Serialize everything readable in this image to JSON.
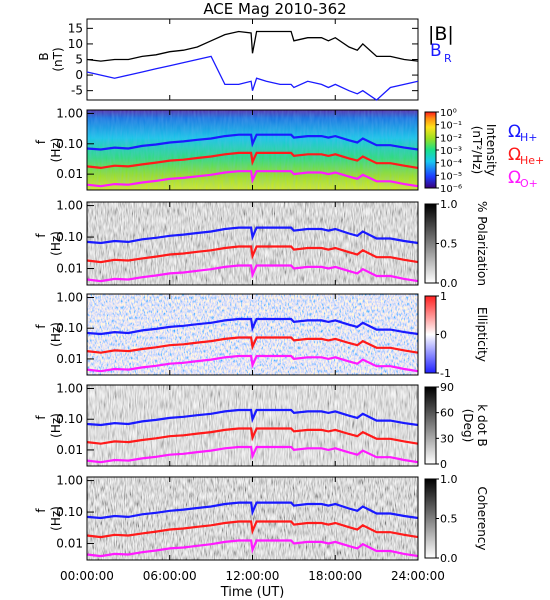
{
  "figure": {
    "title": "ACE Mag 2010-362",
    "x_axis_label": "Time (UT)",
    "x_ticks": [
      "00:00:00",
      "06:00:00",
      "12:00:00",
      "18:00:00",
      "24:00:00"
    ]
  },
  "panels": {
    "field": {
      "ylabel_line1": "B",
      "ylabel_line2": "(nT)",
      "yticks": [
        "15",
        "10",
        "5",
        "0",
        "-5"
      ],
      "legend_total": "|B|",
      "legend_radial": "B",
      "legend_radial_sub": "R"
    },
    "intensity": {
      "ylabel_line1": "f",
      "ylabel_line2": "(Hz)",
      "colorbar_label": "Intensity",
      "colorbar_unit": "(nT²/Hz)",
      "colorbar_ticks": [
        "10⁰",
        "10⁻¹",
        "10⁻²",
        "10⁻³",
        "10⁻⁴",
        "10⁻⁵",
        "10⁻⁶"
      ]
    },
    "polarization": {
      "ylabel_line1": "f",
      "ylabel_line2": "(Hz)",
      "colorbar_label": "% Polarization",
      "colorbar_ticks": [
        "1.0",
        "0.5",
        "0.0"
      ]
    },
    "ellipticity": {
      "ylabel_line1": "f",
      "ylabel_line2": "(Hz)",
      "colorbar_label": "Ellipticity",
      "colorbar_ticks": [
        "1",
        "0",
        "-1"
      ]
    },
    "kdotb": {
      "ylabel_line1": "f",
      "ylabel_line2": "(Hz)",
      "colorbar_label": "k dot B",
      "colorbar_unit": "(Deg)",
      "colorbar_ticks": [
        "90",
        "60",
        "30",
        "0"
      ]
    },
    "coherency": {
      "ylabel_line1": "f",
      "ylabel_line2": "(Hz)",
      "colorbar_label": "Coherency",
      "colorbar_ticks": [
        "1.0",
        "0.5",
        "0.0"
      ]
    },
    "freq_ticks": [
      "1.00",
      "0.10",
      "0.01"
    ]
  },
  "gyro_legend": [
    {
      "symbol": "Ω",
      "sub": "H+",
      "color": "#1a1aff"
    },
    {
      "symbol": "Ω",
      "sub": "He+",
      "color": "#ff1a1a"
    },
    {
      "symbol": "Ω",
      "sub": "O+",
      "color": "#ff1aff"
    }
  ],
  "colors": {
    "total_field": "#000000",
    "radial_field": "#1a1aff",
    "proton_gyro": "#1a1aff",
    "helium_gyro": "#ff1a1a",
    "oxygen_gyro": "#ff1aff"
  },
  "chart_data": {
    "type": "line",
    "x_unit": "hours UT",
    "x_range": [
      0,
      24
    ],
    "field_panel": {
      "ylim": [
        -8,
        18
      ],
      "series": [
        {
          "name": "|B|",
          "x": [
            0,
            1,
            2,
            3,
            4,
            5,
            6,
            7,
            8,
            9,
            10,
            11,
            11.9,
            12,
            12.3,
            13,
            14,
            14.8,
            15,
            16,
            17,
            17.5,
            18,
            19,
            19.6,
            20,
            21,
            22,
            23,
            24
          ],
          "values": [
            5,
            4.5,
            5,
            5,
            6,
            6.5,
            7.5,
            8,
            9,
            11,
            13,
            14,
            13.5,
            7,
            14,
            14,
            14,
            14,
            11,
            12,
            12,
            11,
            12,
            9,
            8,
            10,
            6,
            6,
            5,
            4.5
          ]
        },
        {
          "name": "BR",
          "x": [
            0,
            1,
            2,
            3,
            4,
            5,
            6,
            7,
            8,
            9,
            10,
            11,
            11.9,
            12,
            12.3,
            13,
            14,
            14.8,
            15,
            16,
            17,
            17.5,
            18,
            19,
            19.6,
            20,
            21,
            22,
            23,
            24
          ],
          "values": [
            1,
            0,
            -1,
            0,
            1,
            2,
            3,
            4,
            5,
            6,
            -3,
            -3,
            -2,
            -5,
            -1,
            -2,
            -3,
            -3,
            -4,
            -2,
            -3,
            -4,
            -3,
            -5,
            -6,
            -5,
            -8,
            -4,
            -3,
            -2
          ]
        }
      ]
    },
    "gyrofrequency_hz": {
      "x": [
        0,
        1,
        2,
        3,
        4,
        5,
        6,
        7,
        8,
        9,
        10,
        11,
        11.9,
        12,
        12.3,
        13,
        14,
        14.8,
        15,
        16,
        17,
        17.5,
        18,
        19,
        19.6,
        20,
        21,
        22,
        23,
        24
      ],
      "H+": [
        0.07,
        0.065,
        0.075,
        0.07,
        0.085,
        0.095,
        0.11,
        0.12,
        0.135,
        0.15,
        0.18,
        0.2,
        0.2,
        0.1,
        0.2,
        0.2,
        0.2,
        0.2,
        0.16,
        0.18,
        0.18,
        0.16,
        0.18,
        0.13,
        0.11,
        0.15,
        0.09,
        0.09,
        0.075,
        0.065
      ],
      "He+": [
        0.018,
        0.016,
        0.019,
        0.018,
        0.021,
        0.024,
        0.028,
        0.03,
        0.034,
        0.038,
        0.045,
        0.05,
        0.05,
        0.025,
        0.05,
        0.05,
        0.05,
        0.05,
        0.04,
        0.045,
        0.045,
        0.04,
        0.045,
        0.033,
        0.028,
        0.038,
        0.023,
        0.023,
        0.019,
        0.016
      ],
      "O+": [
        0.0045,
        0.004,
        0.0047,
        0.0045,
        0.0053,
        0.006,
        0.007,
        0.0075,
        0.0085,
        0.0095,
        0.0113,
        0.0125,
        0.0125,
        0.0063,
        0.0125,
        0.0125,
        0.0125,
        0.0125,
        0.01,
        0.0113,
        0.0113,
        0.01,
        0.0113,
        0.0083,
        0.007,
        0.0095,
        0.0058,
        0.0058,
        0.0047,
        0.004
      ]
    },
    "freq_ylim_hz": [
      0.003,
      1.3
    ],
    "freq_scale": "log"
  }
}
